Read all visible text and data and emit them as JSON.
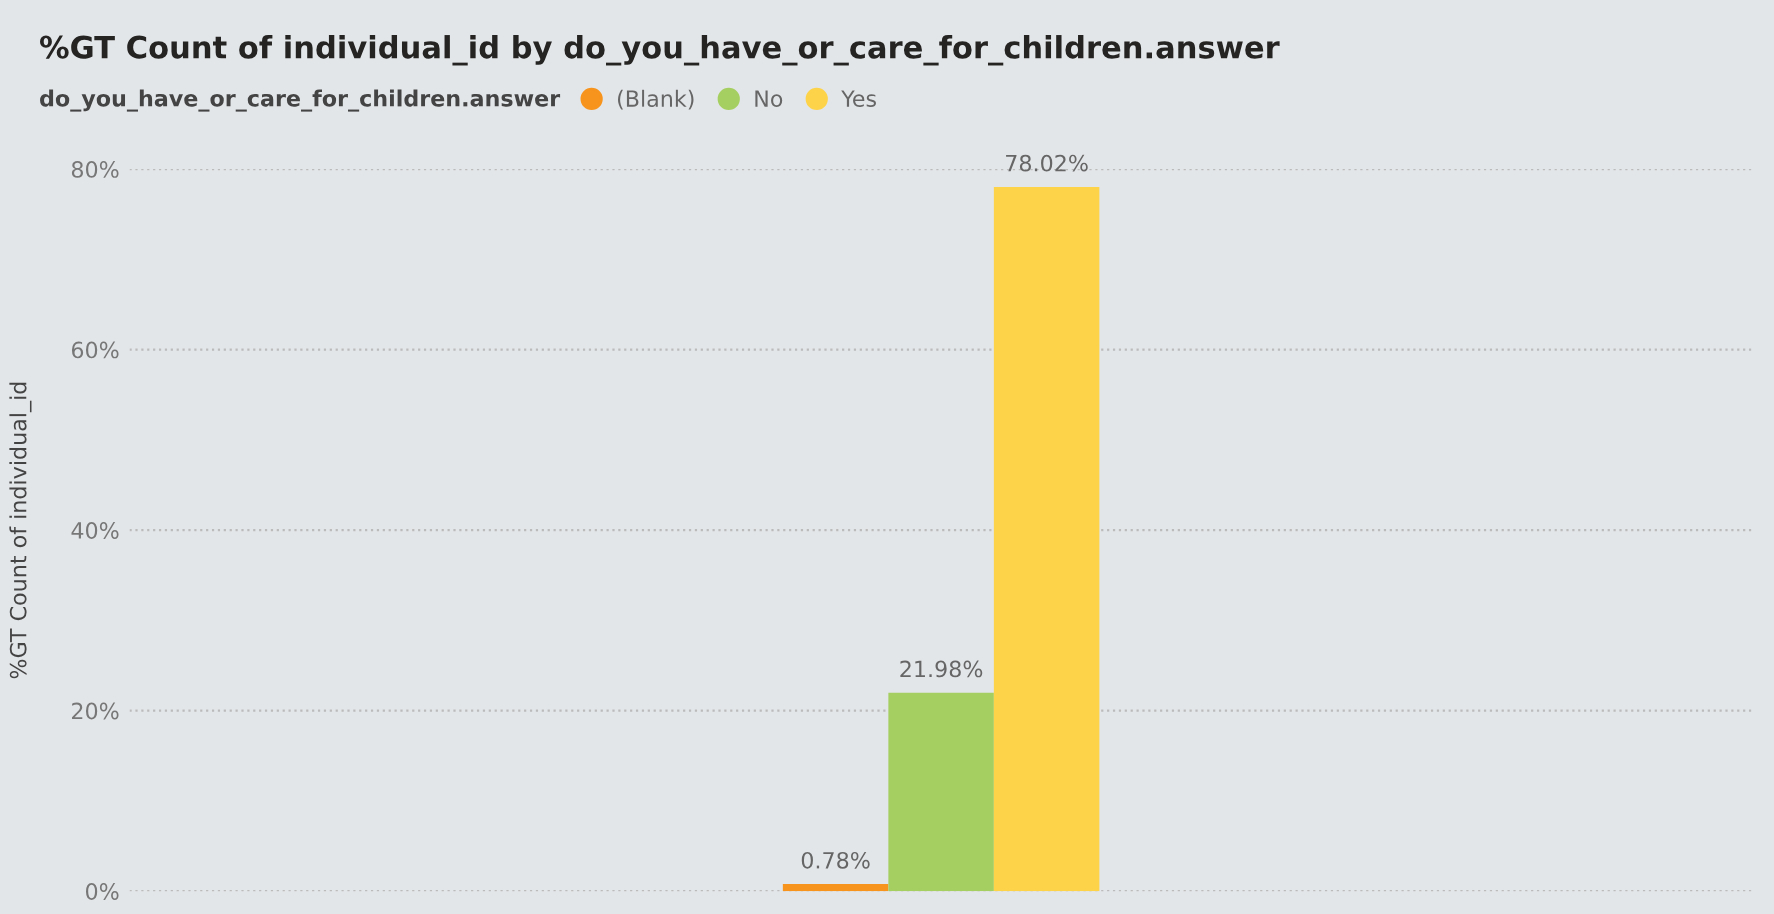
{
  "chart_data": {
    "type": "bar",
    "title": "%GT Count of individual_id by do_you_have_or_care_for_children.answer",
    "ylabel": "%GT Count of individual_id",
    "legend_title": "do_you_have_or_care_for_children.answer",
    "categories": [
      null
    ],
    "series": [
      {
        "name": "(Blank)",
        "color": "#f7941d",
        "values": [
          0.78
        ],
        "value_labels": [
          "0.78%"
        ]
      },
      {
        "name": "No",
        "color": "#a6cf62",
        "values": [
          21.98
        ],
        "value_labels": [
          "21.98%"
        ]
      },
      {
        "name": "Yes",
        "color": "#fdd34a",
        "values": [
          78.02
        ],
        "value_labels": [
          "78.02%"
        ]
      }
    ],
    "ylim": [
      0,
      80
    ],
    "yticks": [
      {
        "value": 0,
        "label": "0%"
      },
      {
        "value": 20,
        "label": "20%"
      },
      {
        "value": 40,
        "label": "40%"
      },
      {
        "value": 60,
        "label": "60%"
      },
      {
        "value": 80,
        "label": "80%"
      }
    ],
    "grid": "y",
    "legend": "top left"
  }
}
